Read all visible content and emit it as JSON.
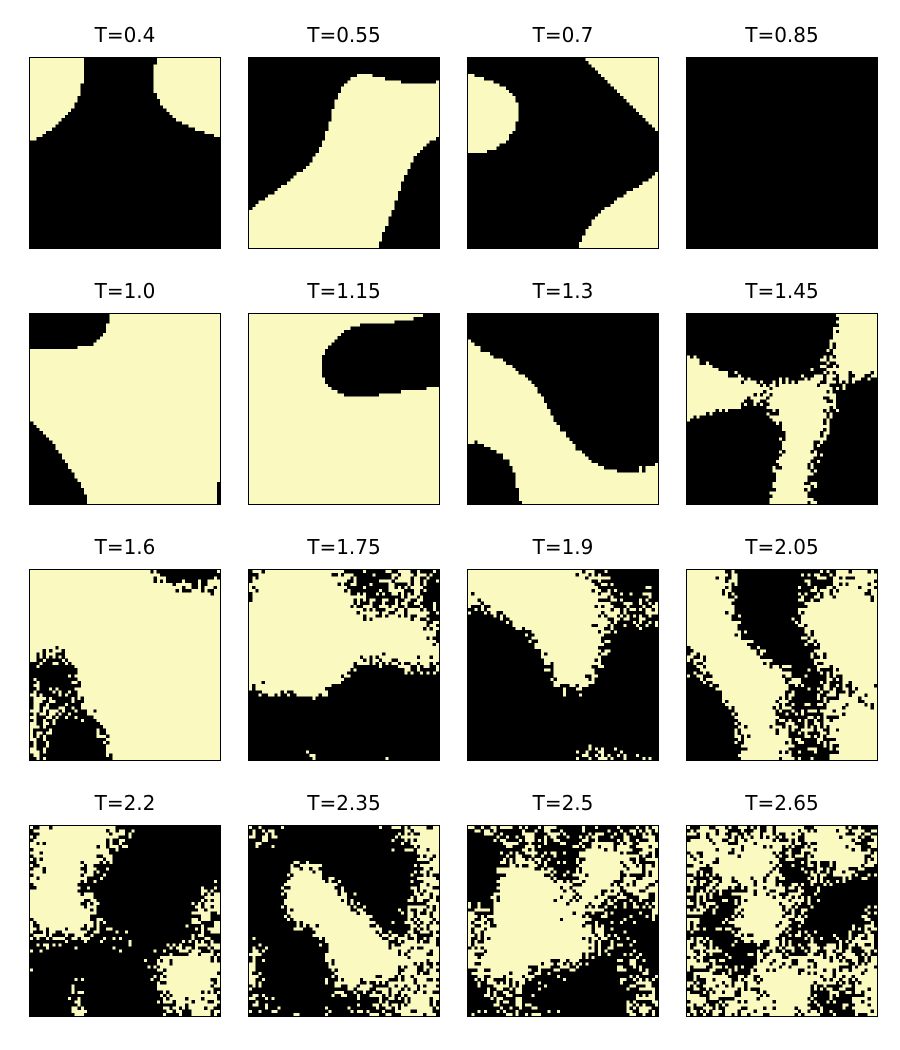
{
  "chart_data": [
    {
      "type": "heatmap",
      "title": "T=0.4",
      "T": 0.4,
      "colors": {
        "spin_up": "#FAFAC0",
        "spin_down": "#000000"
      }
    },
    {
      "type": "heatmap",
      "title": "T=0.55",
      "T": 0.55,
      "colors": {
        "spin_up": "#FAFAC0",
        "spin_down": "#000000"
      }
    },
    {
      "type": "heatmap",
      "title": "T=0.7",
      "T": 0.7,
      "colors": {
        "spin_up": "#FAFAC0",
        "spin_down": "#000000"
      }
    },
    {
      "type": "heatmap",
      "title": "T=0.85",
      "T": 0.85,
      "colors": {
        "spin_up": "#FAFAC0",
        "spin_down": "#000000"
      }
    },
    {
      "type": "heatmap",
      "title": "T=1.0",
      "T": 1.0,
      "colors": {
        "spin_up": "#FAFAC0",
        "spin_down": "#000000"
      }
    },
    {
      "type": "heatmap",
      "title": "T=1.15",
      "T": 1.15,
      "colors": {
        "spin_up": "#FAFAC0",
        "spin_down": "#000000"
      }
    },
    {
      "type": "heatmap",
      "title": "T=1.3",
      "T": 1.3,
      "colors": {
        "spin_up": "#FAFAC0",
        "spin_down": "#000000"
      }
    },
    {
      "type": "heatmap",
      "title": "T=1.45",
      "T": 1.45,
      "colors": {
        "spin_up": "#FAFAC0",
        "spin_down": "#000000"
      }
    },
    {
      "type": "heatmap",
      "title": "T=1.6",
      "T": 1.6,
      "colors": {
        "spin_up": "#FAFAC0",
        "spin_down": "#000000"
      }
    },
    {
      "type": "heatmap",
      "title": "T=1.75",
      "T": 1.75,
      "colors": {
        "spin_up": "#FAFAC0",
        "spin_down": "#000000"
      }
    },
    {
      "type": "heatmap",
      "title": "T=1.9",
      "T": 1.9,
      "colors": {
        "spin_up": "#FAFAC0",
        "spin_down": "#000000"
      }
    },
    {
      "type": "heatmap",
      "title": "T=2.05",
      "T": 2.05,
      "colors": {
        "spin_up": "#FAFAC0",
        "spin_down": "#000000"
      }
    },
    {
      "type": "heatmap",
      "title": "T=2.2",
      "T": 2.2,
      "colors": {
        "spin_up": "#FAFAC0",
        "spin_down": "#000000"
      }
    },
    {
      "type": "heatmap",
      "title": "T=2.35",
      "T": 2.35,
      "colors": {
        "spin_up": "#FAFAC0",
        "spin_down": "#000000"
      }
    },
    {
      "type": "heatmap",
      "title": "T=2.5",
      "T": 2.5,
      "colors": {
        "spin_up": "#FAFAC0",
        "spin_down": "#000000"
      }
    },
    {
      "type": "heatmap",
      "title": "T=2.65",
      "T": 2.65,
      "colors": {
        "spin_up": "#FAFAC0",
        "spin_down": "#000000"
      }
    }
  ]
}
